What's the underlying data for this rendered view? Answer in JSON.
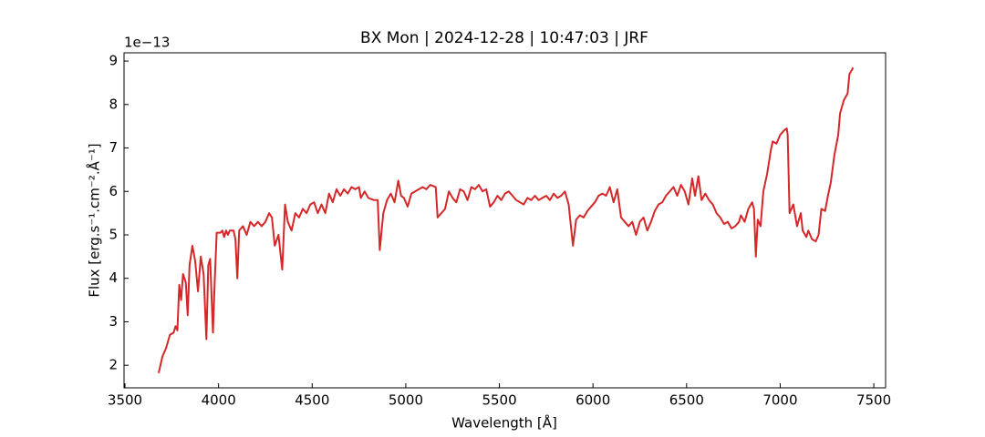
{
  "chart_data": {
    "type": "line",
    "title": "BX Mon | 2024-12-28 | 10:47:03 | JRF",
    "x_label": "Wavelength [Å]",
    "y_label": "Flux [erg.s⁻¹.cm⁻².Å⁻¹]",
    "y_offset_label": "1e−13",
    "color": "#d62728",
    "xlim": [
      3495,
      7563
    ],
    "ylim": [
      1.48,
      9.19
    ],
    "xticks": [
      3500,
      4000,
      4500,
      5000,
      5500,
      6000,
      6500,
      7000,
      7500
    ],
    "yticks": [
      2,
      3,
      4,
      5,
      6,
      7,
      8,
      9
    ],
    "grid": false,
    "x": [
      3680,
      3700,
      3720,
      3740,
      3760,
      3770,
      3780,
      3790,
      3800,
      3810,
      3825,
      3835,
      3845,
      3860,
      3875,
      3890,
      3905,
      3920,
      3935,
      3945,
      3955,
      3970,
      3980,
      3990,
      4010,
      4020,
      4030,
      4040,
      4050,
      4060,
      4080,
      4090,
      4100,
      4110,
      4130,
      4150,
      4170,
      4190,
      4210,
      4230,
      4250,
      4270,
      4285,
      4300,
      4320,
      4340,
      4355,
      4370,
      4390,
      4410,
      4430,
      4450,
      4470,
      4490,
      4510,
      4530,
      4550,
      4570,
      4590,
      4610,
      4630,
      4650,
      4670,
      4690,
      4710,
      4730,
      4750,
      4760,
      4780,
      4800,
      4830,
      4850,
      4861,
      4880,
      4900,
      4920,
      4940,
      4960,
      4975,
      4990,
      5010,
      5030,
      5050,
      5070,
      5090,
      5110,
      5130,
      5160,
      5170,
      5190,
      5210,
      5230,
      5250,
      5270,
      5290,
      5310,
      5330,
      5350,
      5370,
      5390,
      5410,
      5430,
      5450,
      5470,
      5490,
      5510,
      5530,
      5550,
      5570,
      5590,
      5610,
      5630,
      5650,
      5670,
      5690,
      5710,
      5730,
      5750,
      5770,
      5790,
      5810,
      5830,
      5850,
      5870,
      5893,
      5910,
      5930,
      5950,
      5970,
      5990,
      6010,
      6030,
      6050,
      6070,
      6090,
      6110,
      6130,
      6150,
      6170,
      6190,
      6210,
      6230,
      6250,
      6270,
      6290,
      6310,
      6330,
      6350,
      6370,
      6390,
      6410,
      6430,
      6450,
      6470,
      6490,
      6510,
      6530,
      6545,
      6563,
      6580,
      6600,
      6620,
      6640,
      6660,
      6680,
      6700,
      6720,
      6740,
      6760,
      6780,
      6790,
      6810,
      6830,
      6850,
      6860,
      6870,
      6880,
      6895,
      6910,
      6930,
      6950,
      6960,
      6980,
      7000,
      7020,
      7035,
      7040,
      7050,
      7070,
      7090,
      7110,
      7120,
      7140,
      7150,
      7170,
      7190,
      7205,
      7220,
      7240,
      7255,
      7270,
      7290,
      7310,
      7320,
      7340,
      7360,
      7370,
      7390
    ],
    "values": [
      1.82,
      2.2,
      2.4,
      2.7,
      2.75,
      2.9,
      2.8,
      3.85,
      3.5,
      4.1,
      3.9,
      3.15,
      4.3,
      4.75,
      4.4,
      3.7,
      4.5,
      4.1,
      2.6,
      4.3,
      4.45,
      2.75,
      4.0,
      5.05,
      5.05,
      5.1,
      4.95,
      5.1,
      5.0,
      5.1,
      5.1,
      4.9,
      4.0,
      5.1,
      5.2,
      5.0,
      5.3,
      5.2,
      5.3,
      5.2,
      5.3,
      5.5,
      5.4,
      4.75,
      5.0,
      4.2,
      5.7,
      5.3,
      5.1,
      5.5,
      5.4,
      5.6,
      5.5,
      5.7,
      5.75,
      5.5,
      5.7,
      5.5,
      5.95,
      5.75,
      6.05,
      5.9,
      6.05,
      5.95,
      6.1,
      6.05,
      6.1,
      5.85,
      6.0,
      5.85,
      5.8,
      5.8,
      4.65,
      5.5,
      5.8,
      5.95,
      5.75,
      6.25,
      5.9,
      5.85,
      5.65,
      5.95,
      6.0,
      6.05,
      6.1,
      6.05,
      6.15,
      6.1,
      5.4,
      5.5,
      5.6,
      6.0,
      5.85,
      5.75,
      6.05,
      6.0,
      5.8,
      6.1,
      6.05,
      6.15,
      6.0,
      6.05,
      5.65,
      5.75,
      5.9,
      5.8,
      5.95,
      6.0,
      5.9,
      5.8,
      5.75,
      5.7,
      5.85,
      5.8,
      5.9,
      5.8,
      5.85,
      5.9,
      5.8,
      5.95,
      5.85,
      5.9,
      6.0,
      5.7,
      4.75,
      5.35,
      5.45,
      5.4,
      5.55,
      5.65,
      5.75,
      5.9,
      5.95,
      5.9,
      6.1,
      5.75,
      6.05,
      5.4,
      5.3,
      5.2,
      5.3,
      5.0,
      5.3,
      5.4,
      5.1,
      5.3,
      5.55,
      5.7,
      5.75,
      5.9,
      6.0,
      6.1,
      5.9,
      6.15,
      6.0,
      5.7,
      6.3,
      5.9,
      6.35,
      5.8,
      5.95,
      5.8,
      5.7,
      5.5,
      5.4,
      5.25,
      5.3,
      5.15,
      5.2,
      5.3,
      5.45,
      5.3,
      5.6,
      5.75,
      5.6,
      4.5,
      5.35,
      5.2,
      6.0,
      6.4,
      6.95,
      7.15,
      7.1,
      7.3,
      7.4,
      7.45,
      7.3,
      5.5,
      5.7,
      5.2,
      5.5,
      5.1,
      4.95,
      5.1,
      4.9,
      4.85,
      5.0,
      5.6,
      5.55,
      5.9,
      6.2,
      6.85,
      7.3,
      7.8,
      8.1,
      8.25,
      8.7,
      8.85
    ]
  }
}
